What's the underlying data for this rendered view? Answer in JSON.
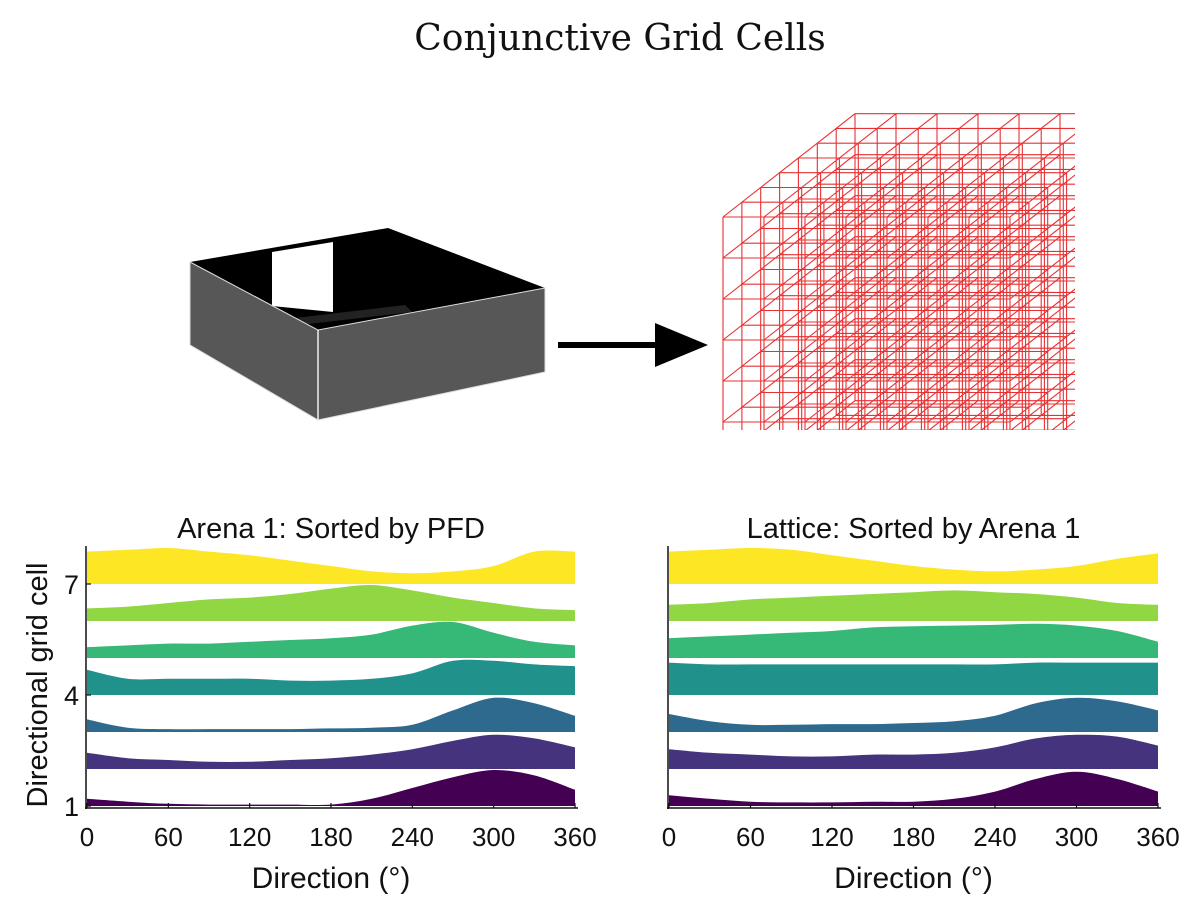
{
  "figure": {
    "title": "Conjunctive Grid Cells",
    "colors": {
      "lattice": "#e41a1c",
      "arena_wall": "#555555",
      "arrow": "#000000"
    }
  },
  "chart_data": [
    {
      "type": "area",
      "title": "Arena 1: Sorted by PFD",
      "xlabel": "Direction (°)",
      "ylabel": "Directional grid cell",
      "xlim": [
        0,
        360
      ],
      "xticks": [
        0,
        60,
        120,
        180,
        240,
        300,
        360
      ],
      "yticks": [
        1,
        4,
        7
      ],
      "grid": false,
      "x": [
        0,
        30,
        60,
        90,
        120,
        150,
        180,
        210,
        240,
        270,
        300,
        330,
        360
      ],
      "series": [
        {
          "cell": 1,
          "color": "#440154",
          "values": [
            0.2,
            0.12,
            0.06,
            0.04,
            0.04,
            0.04,
            0.04,
            0.2,
            0.5,
            0.8,
            1.0,
            0.85,
            0.45
          ]
        },
        {
          "cell": 2,
          "color": "#46337e",
          "values": [
            0.45,
            0.3,
            0.25,
            0.2,
            0.2,
            0.25,
            0.3,
            0.4,
            0.55,
            0.78,
            0.95,
            0.85,
            0.6
          ]
        },
        {
          "cell": 3,
          "color": "#2e6a8e",
          "values": [
            0.35,
            0.12,
            0.08,
            0.08,
            0.08,
            0.08,
            0.1,
            0.12,
            0.2,
            0.6,
            0.95,
            0.8,
            0.45
          ]
        },
        {
          "cell": 4,
          "color": "#21918c",
          "values": [
            0.7,
            0.45,
            0.45,
            0.45,
            0.45,
            0.4,
            0.4,
            0.45,
            0.6,
            0.95,
            0.95,
            0.85,
            0.8
          ]
        },
        {
          "cell": 5,
          "color": "#36b877",
          "values": [
            0.3,
            0.35,
            0.4,
            0.4,
            0.45,
            0.5,
            0.55,
            0.65,
            0.9,
            1.0,
            0.7,
            0.45,
            0.35
          ]
        },
        {
          "cell": 6,
          "color": "#90d743",
          "values": [
            0.35,
            0.4,
            0.5,
            0.6,
            0.65,
            0.75,
            0.9,
            1.0,
            0.85,
            0.65,
            0.5,
            0.35,
            0.3
          ]
        },
        {
          "cell": 7,
          "color": "#fde725",
          "values": [
            0.9,
            0.95,
            1.0,
            0.9,
            0.8,
            0.65,
            0.5,
            0.35,
            0.3,
            0.35,
            0.5,
            0.9,
            0.9
          ]
        }
      ]
    },
    {
      "type": "area",
      "title": "Lattice: Sorted by Arena 1",
      "xlabel": "Direction (°)",
      "ylabel": "",
      "xlim": [
        0,
        360
      ],
      "xticks": [
        0,
        60,
        120,
        180,
        240,
        300,
        360
      ],
      "yticks": [],
      "grid": false,
      "x": [
        0,
        30,
        60,
        90,
        120,
        150,
        180,
        210,
        240,
        270,
        300,
        330,
        360
      ],
      "series": [
        {
          "cell": 1,
          "color": "#440154",
          "values": [
            0.3,
            0.2,
            0.12,
            0.1,
            0.1,
            0.12,
            0.12,
            0.2,
            0.4,
            0.75,
            0.95,
            0.75,
            0.4
          ]
        },
        {
          "cell": 2,
          "color": "#46337e",
          "values": [
            0.55,
            0.45,
            0.4,
            0.35,
            0.35,
            0.4,
            0.4,
            0.45,
            0.6,
            0.85,
            0.95,
            0.9,
            0.65
          ]
        },
        {
          "cell": 3,
          "color": "#2e6a8e",
          "values": [
            0.5,
            0.3,
            0.2,
            0.2,
            0.22,
            0.22,
            0.25,
            0.3,
            0.45,
            0.8,
            0.95,
            0.85,
            0.6
          ]
        },
        {
          "cell": 4,
          "color": "#21918c",
          "values": [
            0.9,
            0.85,
            0.85,
            0.85,
            0.85,
            0.85,
            0.85,
            0.85,
            0.85,
            0.9,
            0.9,
            0.9,
            0.9
          ]
        },
        {
          "cell": 5,
          "color": "#36b877",
          "values": [
            0.55,
            0.6,
            0.65,
            0.7,
            0.75,
            0.85,
            0.88,
            0.9,
            0.92,
            0.95,
            0.9,
            0.75,
            0.45
          ]
        },
        {
          "cell": 6,
          "color": "#90d743",
          "values": [
            0.45,
            0.5,
            0.6,
            0.65,
            0.7,
            0.75,
            0.8,
            0.85,
            0.8,
            0.75,
            0.65,
            0.5,
            0.45
          ]
        },
        {
          "cell": 7,
          "color": "#fde725",
          "values": [
            0.9,
            0.95,
            1.0,
            0.95,
            0.8,
            0.65,
            0.5,
            0.4,
            0.35,
            0.4,
            0.5,
            0.7,
            0.85
          ]
        }
      ]
    }
  ]
}
